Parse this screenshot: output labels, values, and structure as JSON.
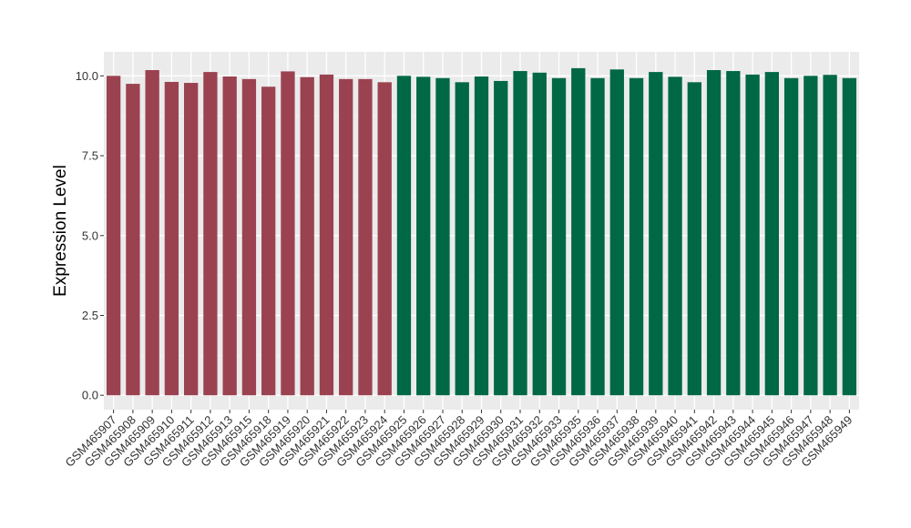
{
  "chart_data": {
    "type": "bar",
    "title": "",
    "xlabel": "",
    "ylabel": "Expression Level",
    "ylim": [
      -0.45,
      10.75
    ],
    "yticks": [
      0.0,
      2.5,
      5.0,
      7.5,
      10.0
    ],
    "ytick_labels": [
      "0.0",
      "2.5",
      "5.0",
      "7.5",
      "10.0"
    ],
    "grid": true,
    "legend": "none",
    "categories": [
      "GSM465907",
      "GSM465908",
      "GSM465909",
      "GSM465910",
      "GSM465911",
      "GSM465912",
      "GSM465913",
      "GSM465915",
      "GSM465918",
      "GSM465919",
      "GSM465920",
      "GSM465921",
      "GSM465922",
      "GSM465923",
      "GSM465924",
      "GSM465925",
      "GSM465926",
      "GSM465927",
      "GSM465928",
      "GSM465929",
      "GSM465930",
      "GSM465931",
      "GSM465932",
      "GSM465933",
      "GSM465935",
      "GSM465936",
      "GSM465937",
      "GSM465938",
      "GSM465939",
      "GSM465940",
      "GSM465941",
      "GSM465942",
      "GSM465943",
      "GSM465944",
      "GSM465945",
      "GSM465946",
      "GSM465947",
      "GSM465948",
      "GSM465949"
    ],
    "values": [
      10.0,
      9.75,
      10.18,
      9.81,
      9.78,
      10.12,
      9.98,
      9.9,
      9.66,
      10.14,
      9.96,
      10.04,
      9.9,
      9.9,
      9.8,
      10.0,
      9.97,
      9.93,
      9.8,
      9.98,
      9.84,
      10.15,
      10.1,
      9.93,
      10.24,
      9.93,
      10.2,
      9.93,
      10.12,
      9.97,
      9.8,
      10.18,
      10.15,
      10.04,
      10.12,
      9.93,
      10.0,
      10.03,
      9.93
    ],
    "group_sizes": [
      15,
      24
    ],
    "colors": {
      "group_1": "#9b4250",
      "group_2": "#006845",
      "panel_background": "#ebebeb",
      "grid_major": "#ffffff",
      "grid_minor": "#f4f4f4"
    }
  }
}
